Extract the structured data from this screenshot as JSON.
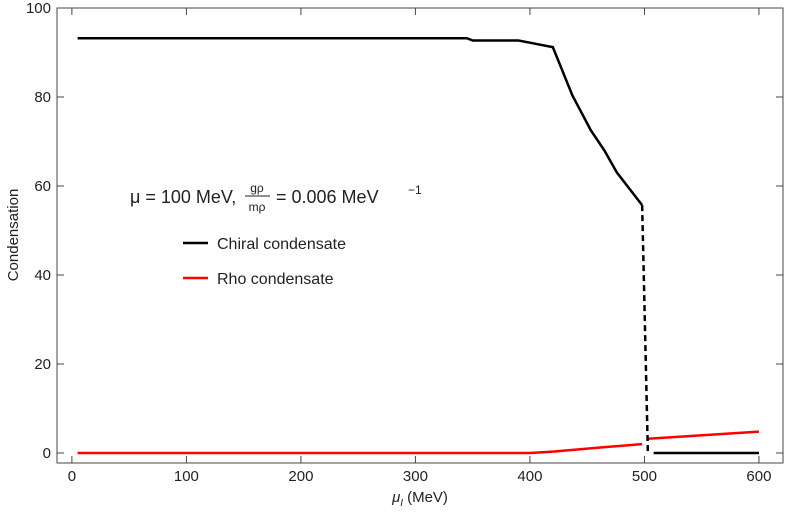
{
  "chart_data": {
    "type": "line",
    "xlabel": {
      "symbol": "μ",
      "subscript": "I",
      "unit": "(MeV)"
    },
    "ylabel": "Condensation",
    "annotation": {
      "lead": "μ = 100 MeV,",
      "numerator": "gρ",
      "denominator": "mρ",
      "tail": "= 0.006 MeV",
      "exponent": "−1"
    },
    "xlim": [
      -13,
      621
    ],
    "ylim": [
      -2.25,
      100
    ],
    "xticks": [
      0,
      100,
      200,
      300,
      400,
      500,
      600
    ],
    "yticks": [
      0,
      20,
      40,
      60,
      80,
      100
    ],
    "series": [
      {
        "name": "Chiral condensate",
        "color": "#000000",
        "linestyle": "solid",
        "x": [
          5,
          100,
          200,
          300,
          345,
          350,
          390,
          400,
          410,
          420,
          437,
          453,
          465,
          476,
          498,
          null,
          508,
          600
        ],
        "values": [
          93.2,
          93.2,
          93.2,
          93.2,
          93.2,
          92.7,
          92.7,
          92.2,
          91.7,
          91.2,
          80.4,
          72.6,
          68,
          63,
          55.7,
          null,
          0,
          0
        ]
      },
      {
        "name": "Rho condensate",
        "color": "#ff0000",
        "linestyle": "solid",
        "x": [
          5,
          100,
          200,
          300,
          400,
          420,
          460,
          498,
          null,
          503,
          600
        ],
        "values": [
          0,
          0,
          0,
          0,
          0,
          0.3,
          1.2,
          2,
          null,
          3.2,
          4.8
        ]
      },
      {
        "color": "#000000",
        "linestyle": "dashed",
        "x": [
          498,
          503
        ],
        "values": [
          55.7,
          0
        ]
      }
    ]
  }
}
